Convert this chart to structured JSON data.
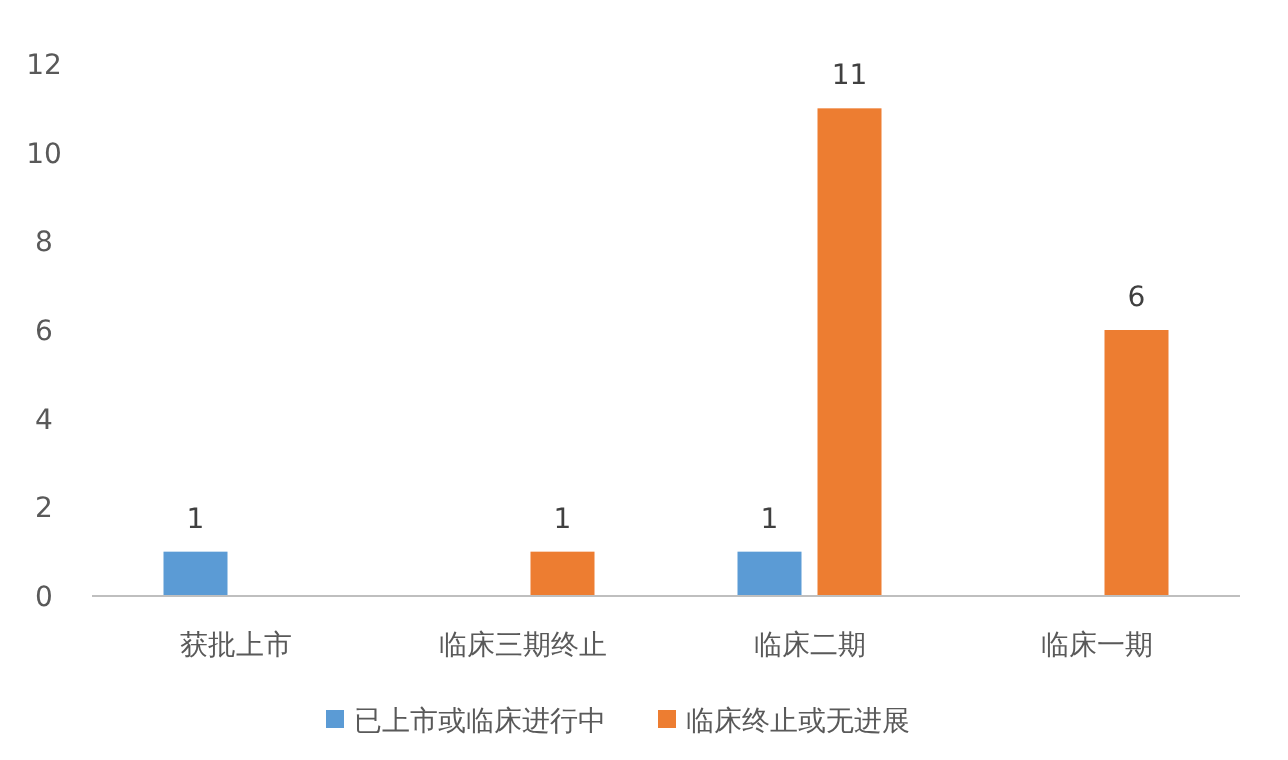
{
  "chart_data": {
    "type": "bar",
    "categories": [
      "获批上市",
      "临床三期终止",
      "临床二期",
      "临床一期"
    ],
    "series": [
      {
        "name": "已上市或临床进行中",
        "color": "#5b9bd5",
        "values": [
          1,
          null,
          1,
          null
        ]
      },
      {
        "name": "临床终止或无进展",
        "color": "#ed7d31",
        "values": [
          null,
          1,
          11,
          6
        ]
      }
    ],
    "ylim": [
      0,
      12
    ],
    "yticks": [
      0,
      2,
      4,
      6,
      8,
      10,
      12
    ],
    "data_labels": true,
    "legend": "bottom"
  }
}
